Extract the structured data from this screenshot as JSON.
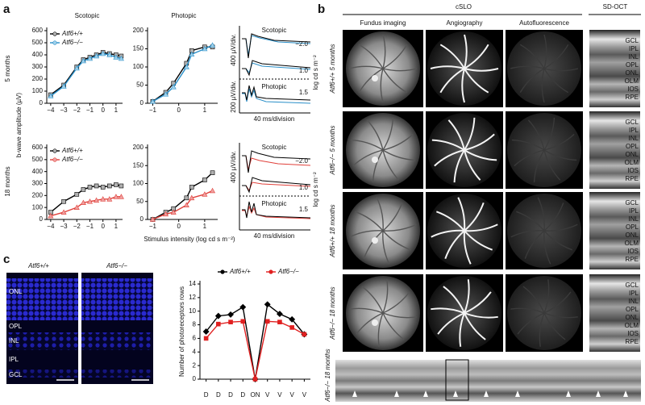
{
  "panel_a": {
    "label": "a",
    "column_titles": [
      "Scotopic",
      "Photopic"
    ],
    "row_labels": [
      "5 months",
      "18 months"
    ],
    "y_label": "b-wave amplitude (µV)",
    "x_label": "Stimulus intensity (log cd s m⁻²)",
    "traces": [
      {
        "titles": [
          "Scotopic",
          "Photopic"
        ],
        "intensities": [
          "−2.0",
          "1.0",
          "1.5"
        ],
        "scales": [
          "400 µV/div.",
          "200 µV/div."
        ],
        "time_scale": "40 ms/division",
        "unit": "log cd s m⁻²"
      },
      {
        "titles": [
          "Scotopic",
          "Photopic"
        ],
        "intensities": [
          "−2.0",
          "1.0",
          "1.5"
        ],
        "scales": [
          "400 µV/div."
        ],
        "time_scale": "40 ms/division",
        "unit": "log cd s m⁻²"
      }
    ]
  },
  "panel_b": {
    "label": "b",
    "group_headers": [
      "cSLO",
      "SD-OCT"
    ],
    "column_headers": [
      "Fundus imaging",
      "Angiography",
      "Autofluorescence"
    ],
    "row_labels": [
      "Atf6+/+ 5 months",
      "Atf6−/− 5 months",
      "Atf6+/+ 18 months",
      "Atf6−/− 18 months"
    ],
    "oct_layers": [
      "GCL",
      "IPL",
      "INL",
      "OPL",
      "ONL",
      "OLM",
      "IOS",
      "RPE"
    ],
    "strip_label": "Atf6−/− 18 months"
  },
  "panel_c": {
    "label": "c",
    "image_headers": [
      "Atf6+/+",
      "Atf6−/−"
    ],
    "layers": [
      "ONL",
      "OPL",
      "INL",
      "IPL",
      "GCL"
    ]
  },
  "chart_data": [
    {
      "type": "line",
      "x": [
        -4,
        -3,
        -2,
        -1.5,
        -1,
        -0.5,
        0,
        0.5,
        1,
        1.4
      ],
      "xlim": [
        -4.3,
        1.5
      ],
      "xticks": [
        {
          "value": -4,
          "label": "−4"
        },
        {
          "value": -3,
          "label": "−3"
        },
        {
          "value": -2,
          "label": "−2"
        },
        {
          "value": -1,
          "label": "−1"
        },
        0,
        1
      ],
      "ylim": [
        0,
        600
      ],
      "yticks": [
        0,
        100,
        200,
        300,
        400,
        500,
        600
      ],
      "legend": "upper left",
      "series": [
        {
          "name": "Atf6+/+",
          "color": "#000000",
          "marker_color": "#b0b0b0",
          "values": [
            70,
            150,
            300,
            360,
            380,
            400,
            420,
            410,
            400,
            390
          ]
        },
        {
          "name": "Atf6−/−",
          "color": "#2a8fc8",
          "marker_color": "#9fd0ea",
          "values": [
            60,
            140,
            290,
            350,
            370,
            390,
            410,
            400,
            380,
            370
          ]
        }
      ]
    },
    {
      "type": "line",
      "x": [
        -1,
        -0.5,
        -0.2,
        0.3,
        0.5,
        1,
        1.3
      ],
      "xlim": [
        -1.2,
        1.5
      ],
      "xticks": [
        {
          "value": -1,
          "label": "−1"
        },
        0,
        1
      ],
      "ylim": [
        0,
        200
      ],
      "yticks": [
        0,
        50,
        100,
        150,
        200
      ],
      "series": [
        {
          "color": "#000000",
          "marker_color": "#b0b0b0",
          "values": [
            5,
            30,
            55,
            110,
            145,
            155,
            155
          ]
        },
        {
          "color": "#2a8fc8",
          "marker_color": "#9fd0ea",
          "values": [
            5,
            25,
            45,
            100,
            135,
            150,
            160
          ]
        }
      ]
    },
    {
      "type": "line",
      "x": [
        -4,
        -3,
        -2,
        -1.5,
        -1,
        -0.5,
        0,
        0.5,
        1,
        1.4
      ],
      "xlim": [
        -4.3,
        1.5
      ],
      "xticks": [
        {
          "value": -4,
          "label": "−4"
        },
        {
          "value": -3,
          "label": "−3"
        },
        {
          "value": -2,
          "label": "−2"
        },
        {
          "value": -1,
          "label": "−1"
        },
        0,
        1
      ],
      "ylim": [
        0,
        600
      ],
      "yticks": [
        0,
        100,
        200,
        300,
        400,
        500,
        600
      ],
      "legend": "upper left",
      "series": [
        {
          "name": "Atf6+/+",
          "color": "#000000",
          "marker_color": "#b0b0b0",
          "values": [
            60,
            150,
            210,
            250,
            270,
            280,
            270,
            280,
            290,
            280
          ]
        },
        {
          "name": "Atf6−/−",
          "color": "#e0403a",
          "marker_color": "#f0a0a0",
          "values": [
            30,
            60,
            100,
            140,
            150,
            160,
            170,
            170,
            190,
            190
          ]
        }
      ]
    },
    {
      "type": "line",
      "x": [
        -1,
        -0.5,
        -0.2,
        0.3,
        0.5,
        1,
        1.3
      ],
      "xlim": [
        -1.2,
        1.5
      ],
      "xticks": [
        {
          "value": -1,
          "label": "−1"
        },
        0,
        1
      ],
      "ylim": [
        0,
        200
      ],
      "yticks": [
        0,
        50,
        100,
        150,
        200
      ],
      "series": [
        {
          "color": "#000000",
          "marker_color": "#b0b0b0",
          "values": [
            0,
            20,
            30,
            60,
            90,
            110,
            130
          ]
        },
        {
          "color": "#e0403a",
          "marker_color": "#f0a0a0",
          "values": [
            0,
            15,
            20,
            40,
            60,
            70,
            80
          ]
        }
      ]
    },
    {
      "type": "line",
      "categories": [
        "D",
        "D",
        "D",
        "D",
        "ON",
        "V",
        "V",
        "V",
        "V"
      ],
      "ylim": [
        0,
        14
      ],
      "yticks": [
        0,
        2,
        4,
        6,
        8,
        10,
        12,
        14
      ],
      "y_label": "Number of photoreceptors rows",
      "legend": "upper center",
      "series": [
        {
          "name": "Atf6+/+",
          "color": "#000000",
          "marker_color": "#000000",
          "values": [
            7,
            9.3,
            9.5,
            10.6,
            0,
            11,
            9.6,
            8.8,
            6.6
          ]
        },
        {
          "name": "Atf6−/−",
          "color": "#e02020",
          "marker_color": "#e02020",
          "values": [
            6,
            8.1,
            8.4,
            8.5,
            0,
            8.5,
            8.4,
            7.6,
            6.6
          ]
        }
      ]
    }
  ]
}
